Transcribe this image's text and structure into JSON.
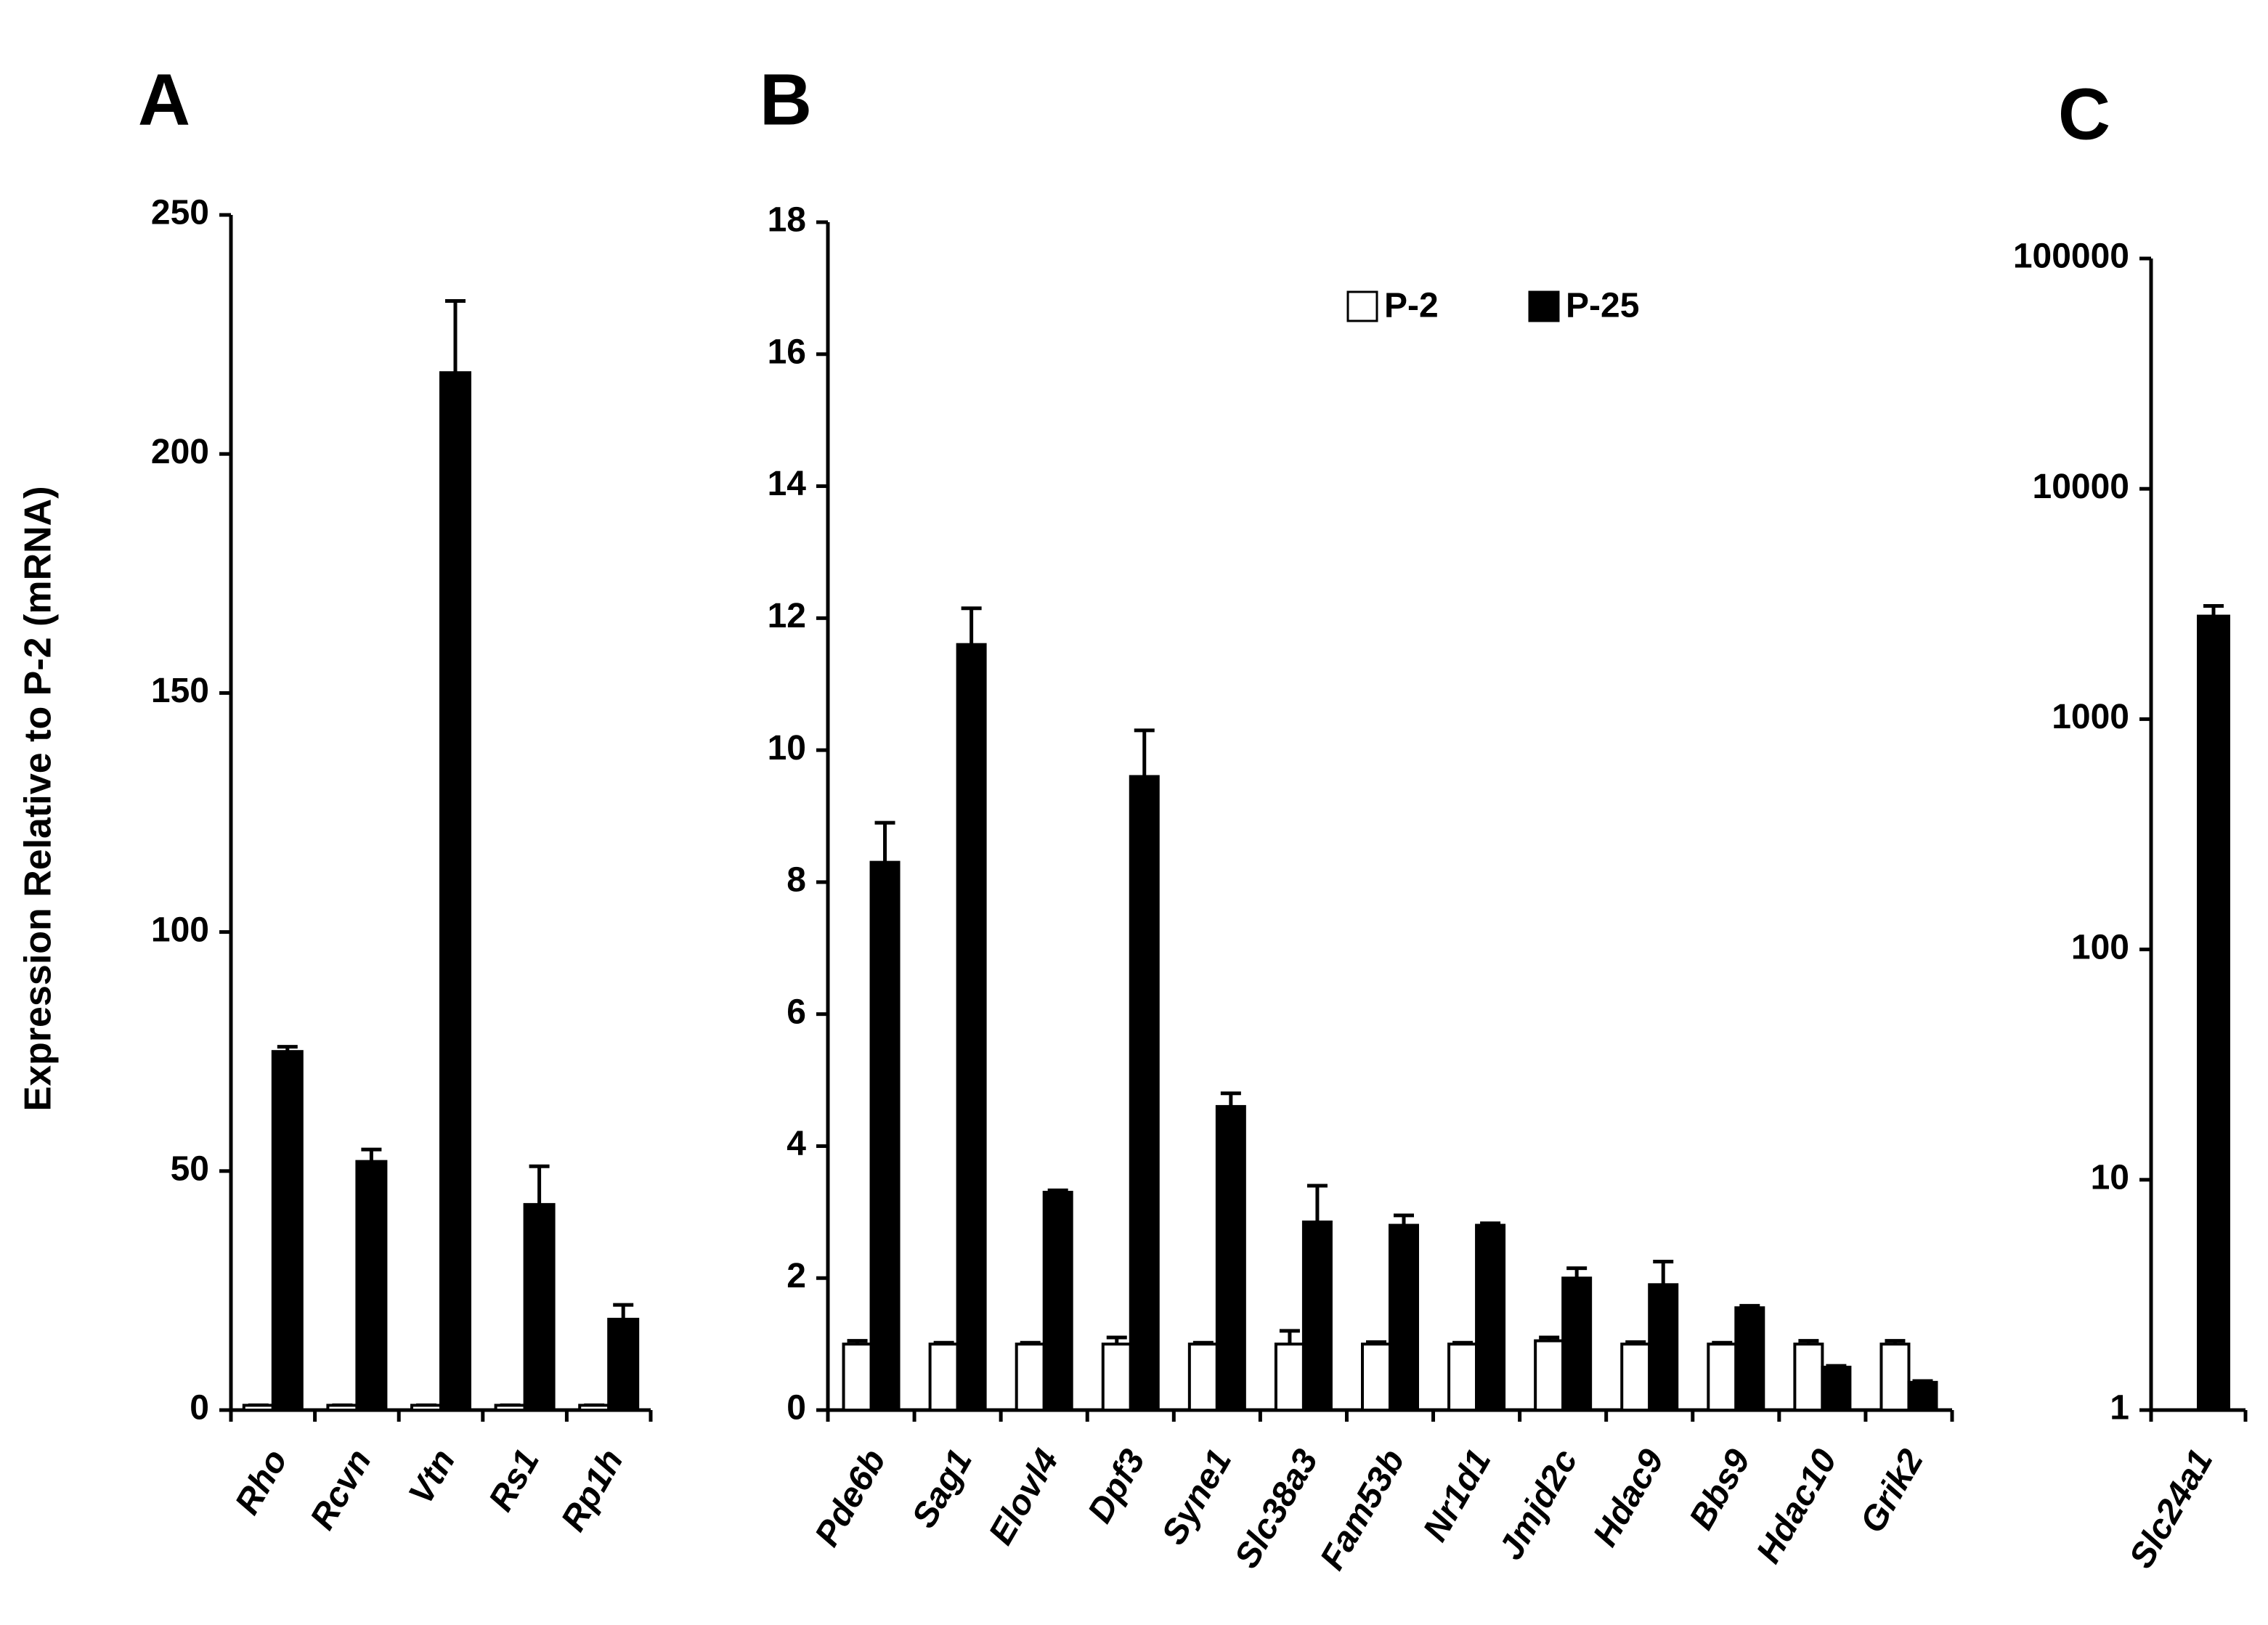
{
  "chart_data": [
    {
      "type": "bar",
      "title": "A",
      "y_label": "Expression Relative to P-2 (mRNA)",
      "categories": [
        "Rho",
        "Rcvn",
        "Vtn",
        "Rs1",
        "Rp1h"
      ],
      "series": [
        {
          "color": "#ffffff",
          "values": [
            1,
            1,
            1,
            1,
            1
          ],
          "errors": [
            0,
            0,
            0,
            0,
            0
          ]
        },
        {
          "color": "#000000",
          "values": [
            75,
            52,
            217,
            43,
            19
          ],
          "errors": [
            1,
            2.5,
            15,
            8,
            3
          ]
        }
      ],
      "ylim": [
        0,
        250
      ],
      "yticks": [
        0,
        50,
        100,
        150,
        200,
        250
      ]
    },
    {
      "type": "bar",
      "title": "B",
      "categories": [
        "Pde6b",
        "Sag1",
        "Elovl4",
        "Dpf3",
        "Syne1",
        "Slc38a3",
        "Fam53b",
        "Nr1d1",
        "Jmjd2c",
        "Hdac9",
        "Bbs9",
        "Hdac10",
        "Grik2"
      ],
      "series": [
        {
          "name": "P-2",
          "color": "#ffffff",
          "values": [
            1,
            1,
            1,
            1,
            1,
            1,
            1,
            1,
            1.05,
            1,
            1,
            1,
            1
          ],
          "errors": [
            0.05,
            0.02,
            0.02,
            0.1,
            0.02,
            0.2,
            0.03,
            0.02,
            0.05,
            0.03,
            0.02,
            0.05,
            0.05
          ]
        },
        {
          "name": "P-25",
          "color": "#000000",
          "values": [
            8.3,
            11.6,
            3.3,
            9.6,
            4.6,
            2.85,
            2.8,
            2.8,
            2.0,
            1.9,
            1.55,
            0.65,
            0.42
          ],
          "errors": [
            0.6,
            0.55,
            0.03,
            0.7,
            0.2,
            0.55,
            0.15,
            0.03,
            0.15,
            0.35,
            0.03,
            0.02,
            0.02
          ]
        }
      ],
      "ylim": [
        0,
        18
      ],
      "yticks": [
        0,
        2,
        4,
        6,
        8,
        10,
        12,
        14,
        16,
        18
      ]
    },
    {
      "type": "bar",
      "title": "C",
      "log_scale": true,
      "categories": [
        "Slc24a1"
      ],
      "series": [
        {
          "color": "#ffffff",
          "values": [
            1
          ],
          "errors": [
            0
          ]
        },
        {
          "color": "#000000",
          "values": [
            2800
          ],
          "errors": [
            300
          ]
        }
      ],
      "ylim": [
        1,
        100000
      ],
      "yticks": [
        1,
        10,
        100,
        1000,
        10000,
        100000
      ]
    }
  ]
}
